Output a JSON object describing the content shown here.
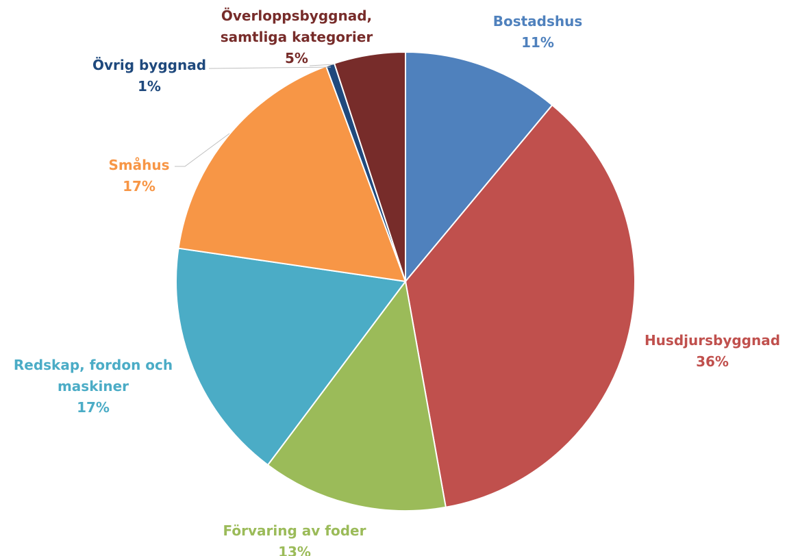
{
  "chart_data": {
    "type": "pie",
    "title": "",
    "start_angle_deg": 0,
    "direction": "clockwise",
    "slices": [
      {
        "label_lines": [
          "Bostadshus"
        ],
        "value": 11,
        "percent_label": "11%",
        "color": "#4F81BD"
      },
      {
        "label_lines": [
          "Husdjursbyggnad"
        ],
        "value": 36,
        "percent_label": "36%",
        "color": "#C0504D"
      },
      {
        "label_lines": [
          "Förvaring av foder"
        ],
        "value": 13,
        "percent_label": "13%",
        "color": "#9BBB59"
      },
      {
        "label_lines": [
          "Redskap, fordon och",
          "maskiner"
        ],
        "value": 17,
        "percent_label": "17%",
        "color": "#4BACC6"
      },
      {
        "label_lines": [
          "Småhus"
        ],
        "value": 17,
        "percent_label": "17%",
        "color": "#F79646"
      },
      {
        "label_lines": [
          "Övrig byggnad"
        ],
        "value": 0.6,
        "percent_label": "1%",
        "color": "#1F497D"
      },
      {
        "label_lines": [
          "Överloppsbyggnad,",
          "samtliga kategorier"
        ],
        "value": 5,
        "percent_label": "5%",
        "color": "#772C2A"
      }
    ]
  }
}
